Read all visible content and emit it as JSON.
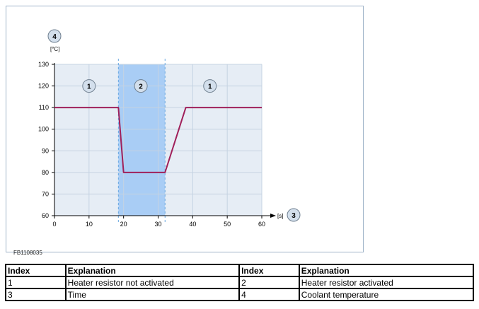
{
  "figure_id": "FB1108035",
  "chart_data": {
    "type": "line",
    "x": [
      0,
      18.5,
      20,
      32,
      38,
      60
    ],
    "series": [
      {
        "values": [
          110,
          110,
          80,
          80,
          110,
          110
        ],
        "color": "#a0205a"
      }
    ],
    "xlim": [
      0,
      60
    ],
    "ylim": [
      60,
      130
    ],
    "xticks": [
      0,
      10,
      20,
      30,
      40,
      50,
      60
    ],
    "yticks": [
      60,
      70,
      80,
      90,
      100,
      110,
      120,
      130
    ],
    "xunit": "[s]",
    "yunit": "[°C]",
    "grid": true,
    "shaded_region": {
      "x_start": 18.5,
      "x_end": 32,
      "color": "#a9cdf5"
    },
    "region_markers": [
      {
        "label": "1",
        "x": 10,
        "y": 120
      },
      {
        "label": "2",
        "x": 25,
        "y": 120
      },
      {
        "label": "1",
        "x": 45,
        "y": 120
      }
    ],
    "axis_markers": {
      "x_axis": "3",
      "y_axis": "4"
    },
    "colors": {
      "plot_bg": "#e6edf5",
      "grid": "#c5d3e2",
      "axis": "#000000",
      "marker_fill": "#d3dfec"
    }
  },
  "legend_table": {
    "headers": [
      "Index",
      "Explanation",
      "Index",
      "Explanation"
    ],
    "rows": [
      [
        "1",
        "Heater resistor not activated",
        "2",
        "Heater resistor activated"
      ],
      [
        "3",
        "Time",
        "4",
        "Coolant temperature"
      ]
    ]
  }
}
